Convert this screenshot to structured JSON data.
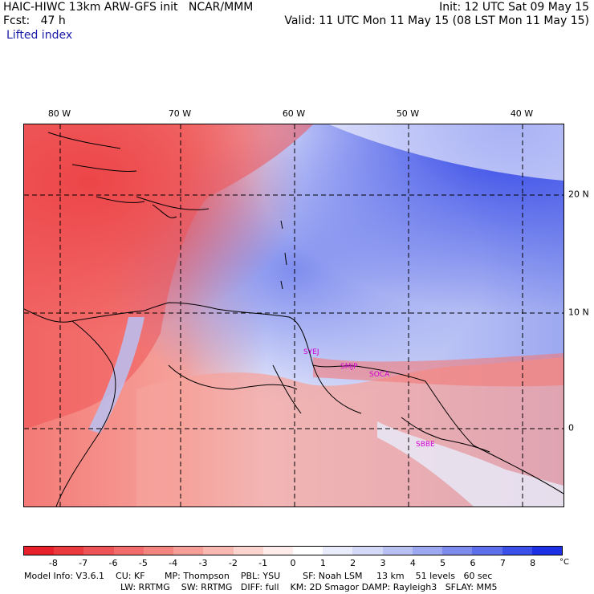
{
  "header": {
    "title": "HAIC-HIWC 13km ARW-GFS init   NCAR/MMM",
    "fcst": "Fcst:   47 h",
    "field": "Lifted index",
    "init": "Init: 12 UTC Sat 09 May 15",
    "valid": "Valid: 11 UTC Mon 11 May 15 (08 LST Mon 11 May 15)"
  },
  "axes": {
    "lon_labels": [
      "80 W",
      "70 W",
      "60 W",
      "50 W",
      "40 W"
    ],
    "lat_labels": [
      "20 N",
      "10 N",
      "0"
    ]
  },
  "stations": [
    "SYEJ",
    "SMJP",
    "SOCA",
    "SBBE"
  ],
  "colorbar": {
    "ticks": [
      "-8",
      "-7",
      "-6",
      "-5",
      "-4",
      "-3",
      "-2",
      "-1",
      "0",
      "1",
      "2",
      "3",
      "4",
      "5",
      "6",
      "7",
      "8"
    ],
    "unit": "°C",
    "colors": [
      "#e8202a",
      "#eb3a3d",
      "#ee5456",
      "#f16c6a",
      "#f3857f",
      "#f59f98",
      "#f8b9b3",
      "#fbd3cf",
      "#fdecea",
      "#ffffff",
      "#e9ecfb",
      "#d3d9f7",
      "#b9c1f3",
      "#9ca8f0",
      "#7d8cec",
      "#5d6fea",
      "#3b50e8",
      "#1c30e6"
    ]
  },
  "footer": {
    "line1": "Model Info: V3.6.1    CU: KF       MP: Thompson    PBL: YSU        SF: Noah LSM     13 km    51 levels   60 sec",
    "line2": "LW: RRTMG    SW: RRTMG   DIFF: full    KM: 2D Smagor DAMP: Rayleigh3   SFLAY: MM5"
  },
  "colors": {
    "field_label": "#1a1aa8",
    "station_label": "#d000d0"
  }
}
